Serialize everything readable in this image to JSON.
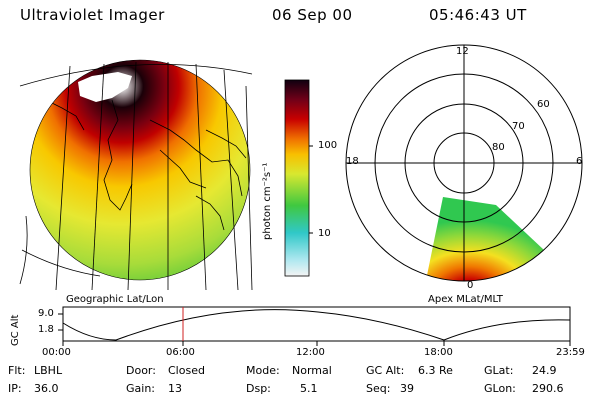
{
  "header": {
    "instrument": "Ultraviolet Imager",
    "date": "06 Sep 00",
    "time": "05:46:43 UT"
  },
  "colorbar": {
    "unit_label": "photon cm⁻²s⁻¹",
    "ticks": [
      "100",
      "10"
    ],
    "scale": "log"
  },
  "panels": {
    "left_label": "Geographic Lat/Lon",
    "right_label": "Apex MLat/MLT"
  },
  "polar": {
    "mlt_labels": [
      "12",
      "18",
      "6",
      "0"
    ],
    "lat_labels": [
      "60",
      "70",
      "80"
    ]
  },
  "altitude_plot": {
    "ylabel": "GC Alt",
    "y_ticks": [
      "9.0",
      "1.8"
    ],
    "x_ticks": [
      "00:00",
      "06:00",
      "12:00",
      "18:00",
      "23:59"
    ],
    "marker_time": "05:46:43"
  },
  "info": {
    "flt_label": "Flt:",
    "flt_value": "LBHL",
    "ip_label": "IP:",
    "ip_value": "36.0",
    "door_label": "Door:",
    "door_value": "Closed",
    "gain_label": "Gain:",
    "gain_value": "13",
    "mode_label": "Mode:",
    "mode_value": "Normal",
    "dsp_label": "Dsp:",
    "dsp_value": "5.1",
    "gcalt_label": "GC Alt:",
    "gcalt_value": "6.3 Re",
    "seq_label": "Seq:",
    "seq_value": "39",
    "glat_label": "GLat:",
    "glat_value": "24.9",
    "glon_label": "GLon:",
    "glon_value": "290.6"
  },
  "colors": {
    "dark": "#2a0010",
    "red": "#b00000",
    "orange": "#f08a00",
    "yellow": "#f4e020",
    "green": "#4ec832",
    "cyan": "#30d0d0",
    "marker": "#d02020"
  }
}
